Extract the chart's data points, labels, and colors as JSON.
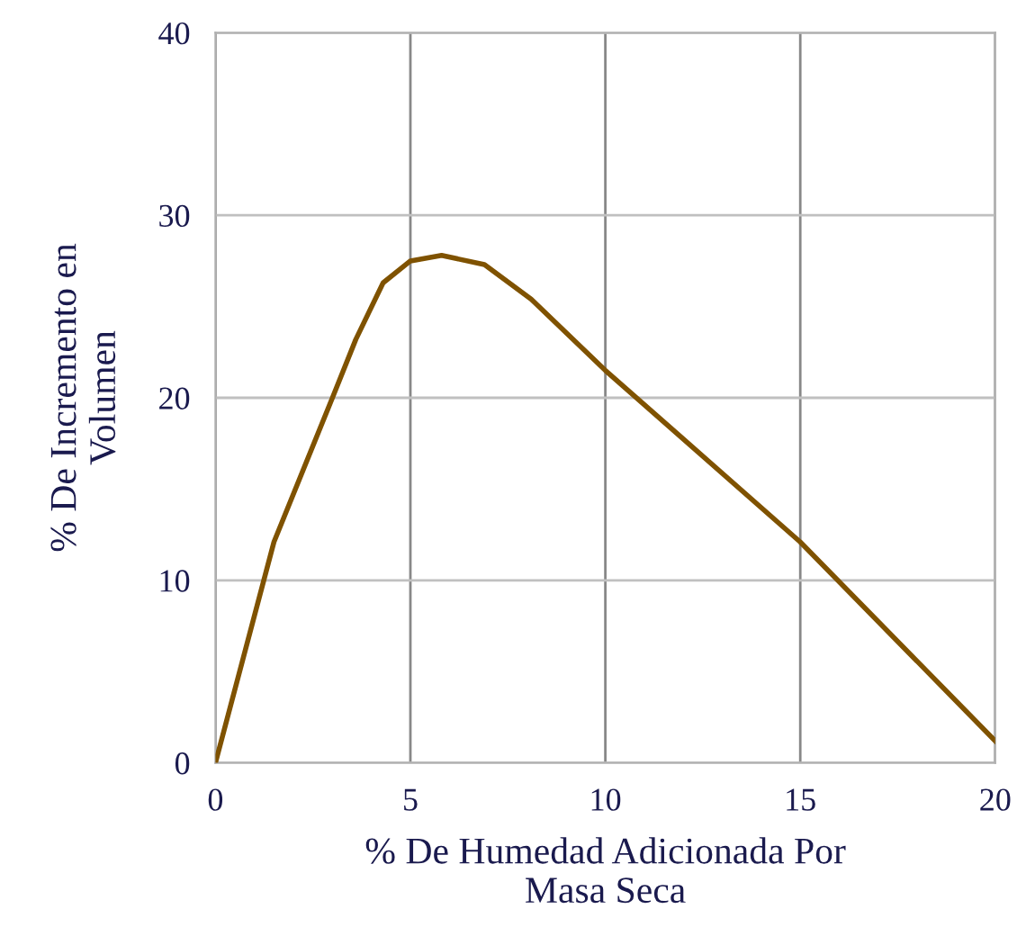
{
  "chart_data": {
    "type": "line",
    "xlabel": "% De Humedad Adicionada Por\nMasa Seca",
    "ylabel": "% De Incremento en\nVolumen",
    "x": [
      0,
      1.5,
      3,
      3.6,
      4.3,
      5,
      5.8,
      6.9,
      8.1,
      10,
      15,
      20
    ],
    "values": [
      0,
      12.1,
      20,
      23.2,
      26.3,
      27.5,
      27.8,
      27.3,
      25.4,
      21.5,
      12.1,
      1.2
    ],
    "color": "#7f5200",
    "xlim": [
      0,
      20
    ],
    "ylim": [
      0,
      40
    ],
    "xticks": [
      0,
      5,
      10,
      15,
      20
    ],
    "yticks": [
      0,
      10,
      20,
      30,
      40
    ],
    "grid": true,
    "marker": "none",
    "line_style": "solid"
  }
}
